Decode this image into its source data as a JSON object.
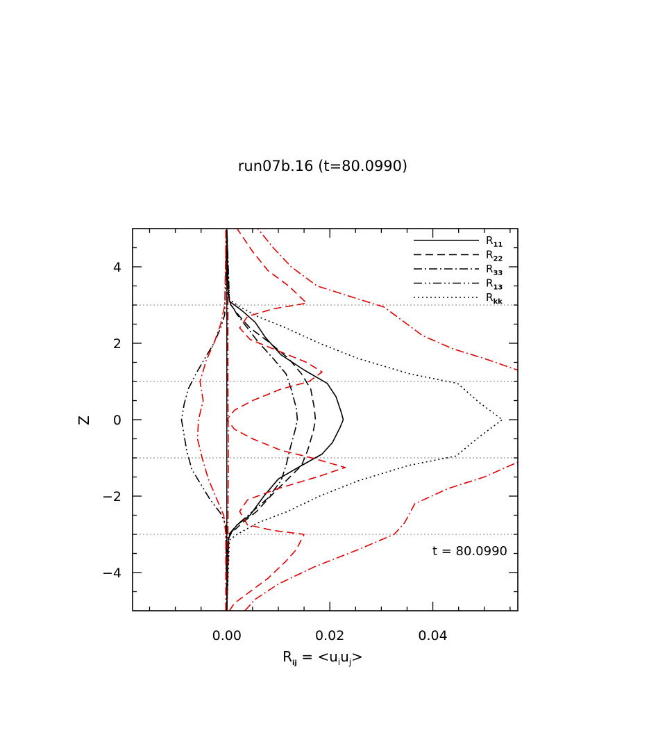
{
  "chart_data": {
    "type": "line",
    "title": "run07b.16 (t=80.0990)",
    "xlabel": {
      "main": "R",
      "sub": "ij",
      "rest": " = <u",
      "sub2": "i",
      "mid": "u",
      "sub3": "j",
      "end": ">"
    },
    "ylabel": "Z",
    "annotation": "t = 80.0990",
    "xlim": [
      -0.0183,
      0.0565
    ],
    "ylim": [
      -5,
      5
    ],
    "xticks": [
      0.0,
      0.02,
      0.04
    ],
    "xtick_labels": [
      "0.00",
      "0.02",
      "0.04"
    ],
    "yticks": [
      -4,
      -2,
      0,
      2,
      4
    ],
    "ytick_labels": [
      "−4",
      "−2",
      "0",
      "2",
      "4"
    ],
    "hlines": [
      -3,
      -1,
      1,
      3
    ],
    "hline_color": "#999999",
    "legend_position": "top-right",
    "legend": [
      {
        "name": "R",
        "sub": "11",
        "dash": "solid"
      },
      {
        "name": "R",
        "sub": "22",
        "dash": "dashed"
      },
      {
        "name": "R",
        "sub": "33",
        "dash": "dashdot"
      },
      {
        "name": "R",
        "sub": "13",
        "dash": "dashdotdot"
      },
      {
        "name": "R",
        "sub": "kk",
        "dash": "dotted"
      }
    ],
    "series": [
      {
        "color": "#000000",
        "dash": "solid",
        "points": [
          [
            0.0,
            -5
          ],
          [
            0.0002,
            -3.2
          ],
          [
            0.0006,
            -3.0
          ],
          [
            0.002,
            -2.75
          ],
          [
            0.0045,
            -2.5
          ],
          [
            0.0072,
            -2.0
          ],
          [
            0.01,
            -1.55
          ],
          [
            0.0145,
            -1.2
          ],
          [
            0.0185,
            -0.9
          ],
          [
            0.0205,
            -0.6
          ],
          [
            0.022,
            -0.2
          ],
          [
            0.0226,
            0.0
          ],
          [
            0.0222,
            0.2
          ],
          [
            0.0212,
            0.6
          ],
          [
            0.0195,
            0.95
          ],
          [
            0.015,
            1.3
          ],
          [
            0.0105,
            1.7
          ],
          [
            0.0075,
            2.15
          ],
          [
            0.0055,
            2.55
          ],
          [
            0.003,
            2.85
          ],
          [
            0.0005,
            3.1
          ],
          [
            0.0002,
            3.5
          ],
          [
            0.0,
            5
          ]
        ]
      },
      {
        "color": "#000000",
        "dash": "dashed",
        "points": [
          [
            0.0,
            -5
          ],
          [
            0.0003,
            -3.1
          ],
          [
            0.001,
            -2.95
          ],
          [
            0.003,
            -2.7
          ],
          [
            0.0058,
            -2.4
          ],
          [
            0.0085,
            -2.0
          ],
          [
            0.0115,
            -1.6
          ],
          [
            0.0145,
            -1.2
          ],
          [
            0.0157,
            -0.8
          ],
          [
            0.0168,
            -0.3
          ],
          [
            0.0172,
            0.0
          ],
          [
            0.017,
            0.3
          ],
          [
            0.0163,
            0.8
          ],
          [
            0.0145,
            1.2
          ],
          [
            0.012,
            1.6
          ],
          [
            0.008,
            2.05
          ],
          [
            0.0045,
            2.4
          ],
          [
            0.0025,
            2.7
          ],
          [
            0.0008,
            3.0
          ],
          [
            0.0002,
            3.3
          ],
          [
            0.0,
            5
          ]
        ]
      },
      {
        "color": "#000000",
        "dash": "dashdot",
        "points": [
          [
            0.0,
            -5
          ],
          [
            0.0004,
            -3.0
          ],
          [
            0.002,
            -2.75
          ],
          [
            0.005,
            -2.4
          ],
          [
            0.008,
            -2.05
          ],
          [
            0.0105,
            -1.6
          ],
          [
            0.0115,
            -1.2
          ],
          [
            0.0123,
            -0.75
          ],
          [
            0.0133,
            -0.25
          ],
          [
            0.0137,
            0.0
          ],
          [
            0.0135,
            0.3
          ],
          [
            0.0125,
            0.8
          ],
          [
            0.0115,
            1.2
          ],
          [
            0.009,
            1.6
          ],
          [
            0.006,
            2.05
          ],
          [
            0.004,
            2.4
          ],
          [
            0.002,
            2.75
          ],
          [
            0.0005,
            3.1
          ],
          [
            0.0,
            5
          ]
        ]
      },
      {
        "color": "#000000",
        "dash": "dashdotdot",
        "points": [
          [
            0.0,
            -5
          ],
          [
            -0.0002,
            -2.75
          ],
          [
            -0.0012,
            -2.45
          ],
          [
            -0.0032,
            -2.1
          ],
          [
            -0.005,
            -1.7
          ],
          [
            -0.0068,
            -1.3
          ],
          [
            -0.0078,
            -0.8
          ],
          [
            -0.0083,
            -0.4
          ],
          [
            -0.0088,
            0.0
          ],
          [
            -0.0083,
            0.4
          ],
          [
            -0.0075,
            0.8
          ],
          [
            -0.006,
            1.2
          ],
          [
            -0.0043,
            1.6
          ],
          [
            -0.0025,
            2.0
          ],
          [
            -0.0012,
            2.4
          ],
          [
            -0.0004,
            2.75
          ],
          [
            0.0,
            5
          ]
        ]
      },
      {
        "color": "#000000",
        "dash": "dotted",
        "points": [
          [
            0.0,
            -5
          ],
          [
            0.0005,
            -3.15
          ],
          [
            0.002,
            -3.0
          ],
          [
            0.006,
            -2.7
          ],
          [
            0.0118,
            -2.4
          ],
          [
            0.018,
            -2.0
          ],
          [
            0.0255,
            -1.6
          ],
          [
            0.0352,
            -1.2
          ],
          [
            0.0445,
            -0.95
          ],
          [
            0.049,
            -0.45
          ],
          [
            0.0535,
            0.0
          ],
          [
            0.049,
            0.45
          ],
          [
            0.0448,
            0.95
          ],
          [
            0.0355,
            1.2
          ],
          [
            0.0255,
            1.6
          ],
          [
            0.018,
            2.0
          ],
          [
            0.0115,
            2.4
          ],
          [
            0.006,
            2.7
          ],
          [
            0.002,
            3.0
          ],
          [
            0.0005,
            3.15
          ],
          [
            0.0,
            5
          ]
        ]
      },
      {
        "color": "#e00000",
        "dash": "dashed",
        "points": [
          [
            0.0005,
            -5
          ],
          [
            0.0015,
            -4.8
          ],
          [
            0.0045,
            -4.5
          ],
          [
            0.008,
            -4.15
          ],
          [
            0.0115,
            -3.7
          ],
          [
            0.0135,
            -3.4
          ],
          [
            0.015,
            -3.0
          ],
          [
            0.009,
            -2.9
          ],
          [
            0.004,
            -2.75
          ],
          [
            0.0025,
            -2.4
          ],
          [
            0.004,
            -2.1
          ],
          [
            0.01,
            -1.8
          ],
          [
            0.0175,
            -1.5
          ],
          [
            0.023,
            -1.25
          ],
          [
            0.0165,
            -1.0
          ],
          [
            0.0105,
            -0.8
          ],
          [
            0.005,
            -0.5
          ],
          [
            0.0015,
            -0.25
          ],
          [
            0.0,
            0.0
          ],
          [
            0.0015,
            0.25
          ],
          [
            0.005,
            0.5
          ],
          [
            0.0105,
            0.8
          ],
          [
            0.016,
            1.0
          ],
          [
            0.0185,
            1.25
          ],
          [
            0.0155,
            1.5
          ],
          [
            0.01,
            1.8
          ],
          [
            0.0045,
            2.1
          ],
          [
            0.0025,
            2.4
          ],
          [
            0.004,
            2.7
          ],
          [
            0.009,
            2.9
          ],
          [
            0.0155,
            3.05
          ],
          [
            0.012,
            3.5
          ],
          [
            0.008,
            3.9
          ],
          [
            0.005,
            4.4
          ],
          [
            0.003,
            4.8
          ],
          [
            0.002,
            5
          ]
        ]
      },
      {
        "color": "#e00000",
        "dash": "dashdot",
        "points": [
          [
            0.0035,
            -5
          ],
          [
            0.0055,
            -4.7
          ],
          [
            0.01,
            -4.3
          ],
          [
            0.017,
            -3.85
          ],
          [
            0.0255,
            -3.4
          ],
          [
            0.0325,
            -3.0
          ],
          [
            0.0345,
            -2.7
          ],
          [
            0.0365,
            -2.2
          ],
          [
            0.043,
            -1.8
          ],
          [
            0.05,
            -1.5
          ],
          [
            0.0575,
            -1.05
          ],
          [
            0.0575,
            1.25
          ],
          [
            0.05,
            1.6
          ],
          [
            0.044,
            1.85
          ],
          [
            0.038,
            2.2
          ],
          [
            0.034,
            2.6
          ],
          [
            0.0305,
            2.95
          ],
          [
            0.0245,
            3.2
          ],
          [
            0.0175,
            3.5
          ],
          [
            0.0125,
            4.0
          ],
          [
            0.009,
            4.5
          ],
          [
            0.006,
            5
          ]
        ]
      },
      {
        "color": "#e00000",
        "dash": "dashdot",
        "points": [
          [
            -0.0002,
            -5
          ],
          [
            -0.0002,
            -3.0
          ],
          [
            -0.0006,
            -2.5
          ],
          [
            -0.0022,
            -2.0
          ],
          [
            -0.0036,
            -1.55
          ],
          [
            -0.0048,
            -1.0
          ],
          [
            -0.0057,
            -0.5
          ],
          [
            -0.0055,
            0.0
          ],
          [
            -0.0046,
            0.5
          ],
          [
            -0.0052,
            1.0
          ],
          [
            -0.004,
            1.55
          ],
          [
            -0.0025,
            2.0
          ],
          [
            -0.0012,
            2.5
          ],
          [
            -0.0004,
            3.0
          ],
          [
            -0.0002,
            4.5
          ],
          [
            -0.0002,
            5
          ]
        ]
      },
      {
        "color": "#e00000",
        "dash": "dashdot",
        "points": [
          [
            0.0,
            -5
          ],
          [
            0.0002,
            -3.0
          ],
          [
            0.0003,
            -1.0
          ],
          [
            0.0002,
            1.0
          ],
          [
            0.0002,
            3.0
          ],
          [
            -0.0002,
            4.3
          ],
          [
            0.0,
            5
          ]
        ]
      }
    ]
  }
}
